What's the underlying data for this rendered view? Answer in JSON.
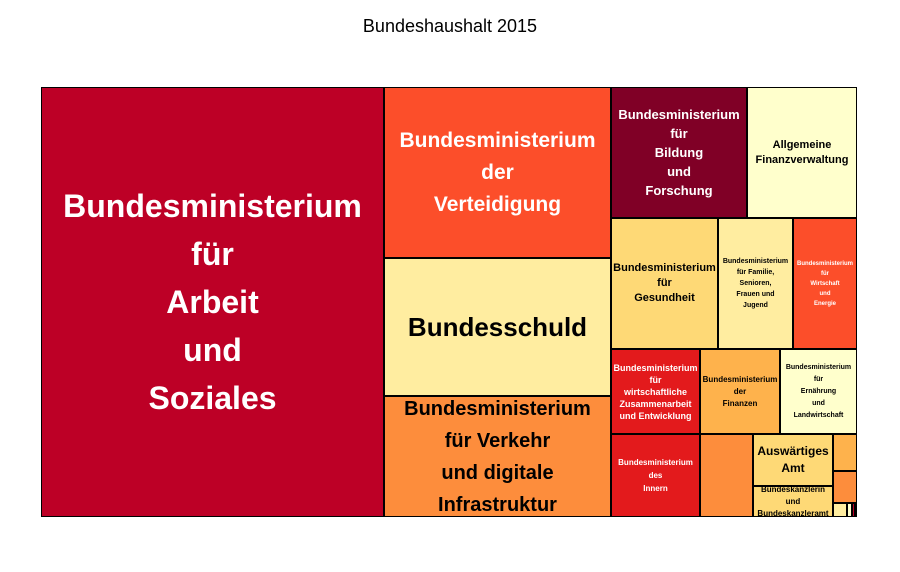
{
  "title": "Bundeshaushalt 2015",
  "chart_data": {
    "type": "treemap",
    "title": "Bundeshaushalt 2015",
    "tiles": [
      {
        "label": "Bundesministerium\nfür\nArbeit\nund\nSoziales",
        "color": "#bd0026",
        "text_color": "#ffffff",
        "fs": 32,
        "lh": 48
      },
      {
        "label": "Bundesministerium\nder\nVerteidigung",
        "color": "#fc4e2a",
        "text_color": "#ffffff",
        "fs": 21,
        "lh": 32
      },
      {
        "label": "Bundesschuld",
        "color": "#ffeda0",
        "text_color": "#000000",
        "fs": 26,
        "lh": 30
      },
      {
        "label": "Bundesministerium\nfür Verkehr\nund digitale\nInfrastruktur",
        "color": "#fd8d3c",
        "text_color": "#000000",
        "fs": 20,
        "lh": 32
      },
      {
        "label": "Bundesministerium\nfür\nBildung\nund\nForschung",
        "color": "#800026",
        "text_color": "#ffffff",
        "fs": 13,
        "lh": 19
      },
      {
        "label": "Allgemeine\nFinanzverwaltung",
        "color": "#ffffcc",
        "text_color": "#000000",
        "fs": 11,
        "lh": 15
      },
      {
        "label": "Bundesministerium\nfür\nGesundheit",
        "color": "#fed976",
        "text_color": "#000000",
        "fs": 11,
        "lh": 15
      },
      {
        "label": "Bundesministerium\nfür Familie,\nSenioren,\nFrauen und\nJugend",
        "color": "#ffeda0",
        "text_color": "#000000",
        "fs": 7,
        "lh": 11
      },
      {
        "label": "Bundesministerium\nfür\nWirtschaft\nund\nEnergie",
        "color": "#fc4e2a",
        "text_color": "#ffffff",
        "fs": 6,
        "lh": 10
      },
      {
        "label": "Bundesministerium\nfür\nwirtschaftliche\nZusammenarbeit\nund Entwicklung",
        "color": "#e31a1c",
        "text_color": "#ffffff",
        "fs": 9,
        "lh": 12
      },
      {
        "label": "Bundesministerium\nder\nFinanzen",
        "color": "#feb24c",
        "text_color": "#000000",
        "fs": 8,
        "lh": 12
      },
      {
        "label": "Bundesministerium\nfür\nErnährung\nund\nLandwirtschaft",
        "color": "#ffffcc",
        "text_color": "#000000",
        "fs": 7,
        "lh": 12
      },
      {
        "label": "Bundesministerium\ndes\nInnern",
        "color": "#e31a1c",
        "text_color": "#ffffff",
        "fs": 8,
        "lh": 13
      },
      {
        "label": "",
        "color": "#fd8d3c",
        "text_color": "#000000",
        "fs": 8,
        "lh": 12
      },
      {
        "label": "Auswärtiges\nAmt",
        "color": "#fed976",
        "text_color": "#000000",
        "fs": 12,
        "lh": 17
      },
      {
        "label": "Bundeskanzlerin\nund\nBundeskanzleramt",
        "color": "#fed976",
        "text_color": "#000000",
        "fs": 8,
        "lh": 12
      },
      {
        "label": "",
        "color": "#feb24c",
        "text_color": "#000000",
        "fs": 8,
        "lh": 12
      },
      {
        "label": "",
        "color": "#fd8d3c",
        "text_color": "#000000",
        "fs": 8,
        "lh": 12
      },
      {
        "label": "",
        "color": "#ffeda0",
        "text_color": "#000000",
        "fs": 8,
        "lh": 12
      },
      {
        "label": "",
        "color": "#ffffcc",
        "text_color": "#000000",
        "fs": 8,
        "lh": 12
      },
      {
        "label": "",
        "color": "#bd0026",
        "text_color": "#000000",
        "fs": 8,
        "lh": 12
      },
      {
        "label": "",
        "color": "#fc4e2a",
        "text_color": "#000000",
        "fs": 8,
        "lh": 12
      }
    ]
  }
}
